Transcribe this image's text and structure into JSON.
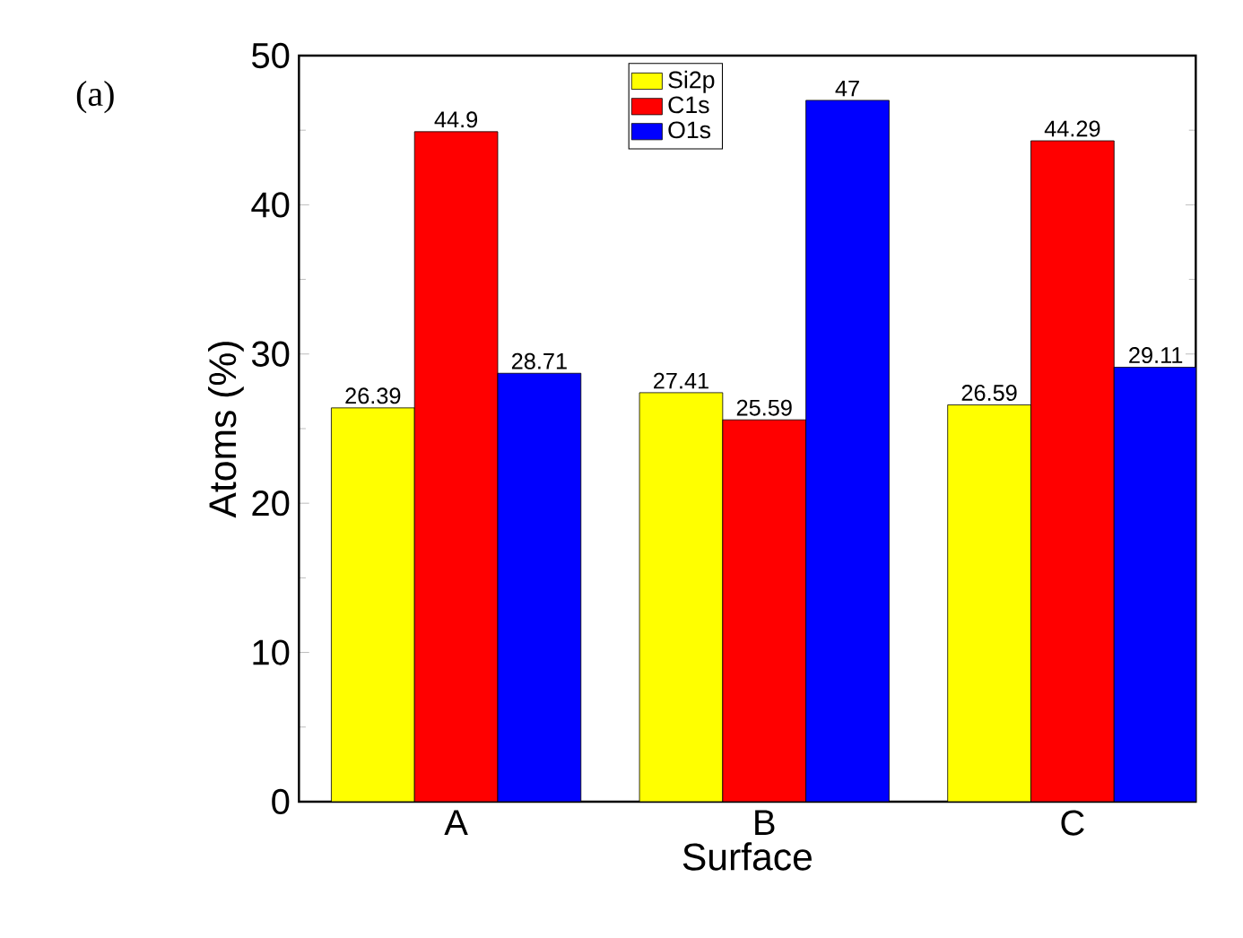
{
  "chart_data": {
    "type": "bar",
    "xlabel": "Surface",
    "ylabel": "Atoms (%)",
    "categories": [
      "A",
      "B",
      "C"
    ],
    "series": [
      {
        "name": "Si2p",
        "color": "#ffff00",
        "values": [
          26.39,
          27.41,
          26.59
        ]
      },
      {
        "name": "C1s",
        "color": "#ff0000",
        "values": [
          44.9,
          25.59,
          44.29
        ]
      },
      {
        "name": "O1s",
        "color": "#0000ff",
        "values": [
          28.71,
          47,
          29.11
        ]
      }
    ],
    "ylim": [
      0,
      50
    ],
    "yticks": [
      0,
      10,
      20,
      30,
      40,
      50
    ],
    "data_labels": true,
    "legend": "top",
    "annotations": [
      "(a)"
    ]
  }
}
